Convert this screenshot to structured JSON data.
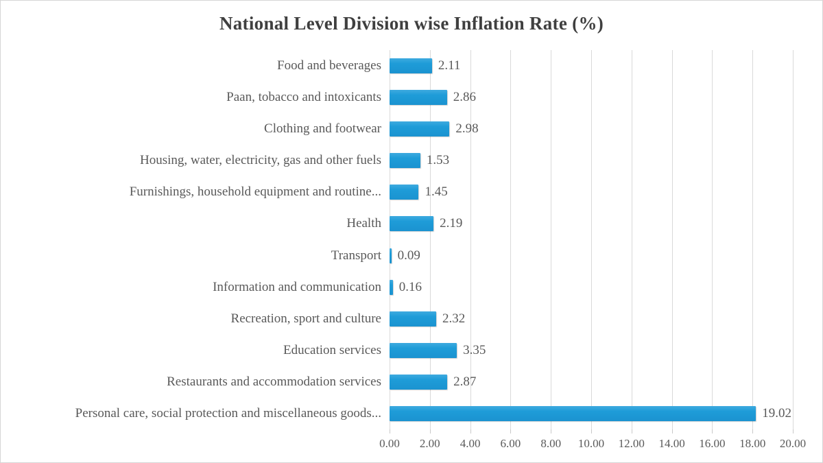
{
  "chart_data": {
    "type": "bar",
    "orientation": "horizontal",
    "title": "National Level Division wise Inflation Rate (%)",
    "categories": [
      "Food and beverages",
      "Paan, tobacco and intoxicants",
      "Clothing and footwear",
      "Housing, water, electricity, gas and other fuels",
      "Furnishings, household equipment and routine...",
      "Health",
      "Transport",
      "Information and communication",
      "Recreation, sport and culture",
      "Education services",
      "Restaurants and accommodation services",
      "Personal care, social protection and miscellaneous goods..."
    ],
    "values": [
      2.11,
      2.86,
      2.98,
      1.53,
      1.45,
      2.19,
      0.09,
      0.16,
      2.32,
      3.35,
      2.87,
      19.02
    ],
    "value_labels": [
      "2.11",
      "2.86",
      "2.98",
      "1.53",
      "1.45",
      "2.19",
      "0.09",
      "0.16",
      "2.32",
      "3.35",
      "2.87",
      "19.02"
    ],
    "xlabel": "",
    "ylabel": "",
    "xlim": [
      0,
      20
    ],
    "x_ticks": [
      "0.00",
      "2.00",
      "4.00",
      "6.00",
      "8.00",
      "10.00",
      "12.00",
      "14.00",
      "16.00",
      "18.00",
      "20.00"
    ],
    "grid": "vertical gridlines on",
    "legend": "none",
    "colors": {
      "bar": "#1e9cd8",
      "text": "#595959",
      "title": "#3f3f3f",
      "gridline": "#d9d9d9",
      "border": "#d6d6d6",
      "background": "#ffffff"
    }
  }
}
